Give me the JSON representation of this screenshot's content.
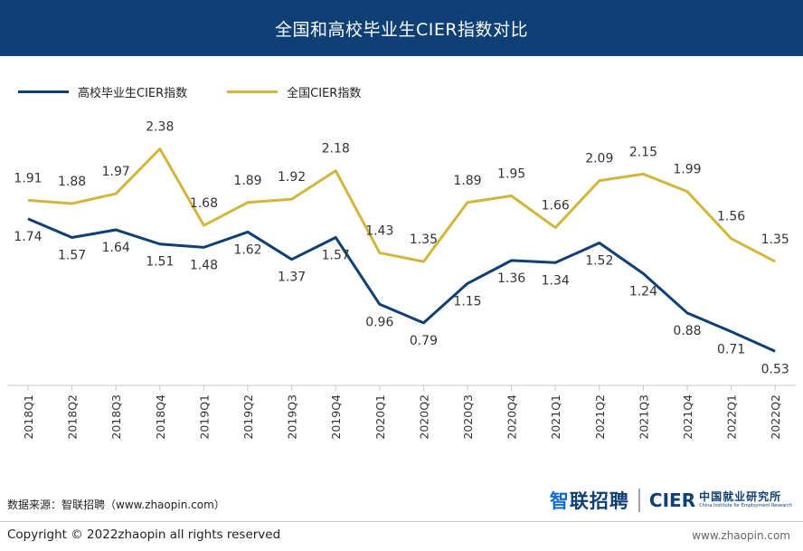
{
  "header": {
    "title": "全国和高校毕业生CIER指数对比"
  },
  "legend": {
    "items": [
      {
        "label": "高校毕业生CIER指数",
        "color": "#0e3f75"
      },
      {
        "label": "全国CIER指数",
        "color": "#d4b53c"
      }
    ]
  },
  "chart_data": {
    "type": "line",
    "title": "全国和高校毕业生CIER指数对比",
    "categories": [
      "2018Q1",
      "2018Q2",
      "2018Q3",
      "2018Q4",
      "2019Q1",
      "2019Q2",
      "2019Q3",
      "2019Q4",
      "2020Q1",
      "2020Q2",
      "2020Q3",
      "2020Q4",
      "2021Q1",
      "2021Q2",
      "2021Q3",
      "2021Q4",
      "2022Q1",
      "2022Q2"
    ],
    "series": [
      {
        "name": "全国CIER指数",
        "color": "#d4b53c",
        "values": [
          1.91,
          1.88,
          1.97,
          2.38,
          1.68,
          1.89,
          1.92,
          2.18,
          1.43,
          1.35,
          1.89,
          1.95,
          1.66,
          2.09,
          2.15,
          1.99,
          1.56,
          1.35
        ]
      },
      {
        "name": "高校毕业生CIER指数",
        "color": "#0e3f75",
        "values": [
          1.74,
          1.57,
          1.64,
          1.51,
          1.48,
          1.62,
          1.37,
          1.57,
          0.96,
          0.79,
          1.15,
          1.36,
          1.34,
          1.52,
          1.24,
          0.88,
          0.71,
          0.53
        ]
      }
    ],
    "xlabel": "",
    "ylabel": "",
    "ylim": [
      0.4,
      2.5
    ],
    "grid": false,
    "legend_position": "top-left"
  },
  "footer": {
    "source": "数据来源：智联招聘（www.zhaopin.com）",
    "logo_zhaopin_first": "智",
    "logo_zhaopin_rest": "联招聘",
    "logo_cier": "CIER",
    "logo_cier_cn": "中国就业研究所",
    "logo_cier_en": "China Institute for Employment Research",
    "copyright": "Copyright ©  2022zhaopin all rights reserved",
    "url": "www.zhaopin.com"
  }
}
